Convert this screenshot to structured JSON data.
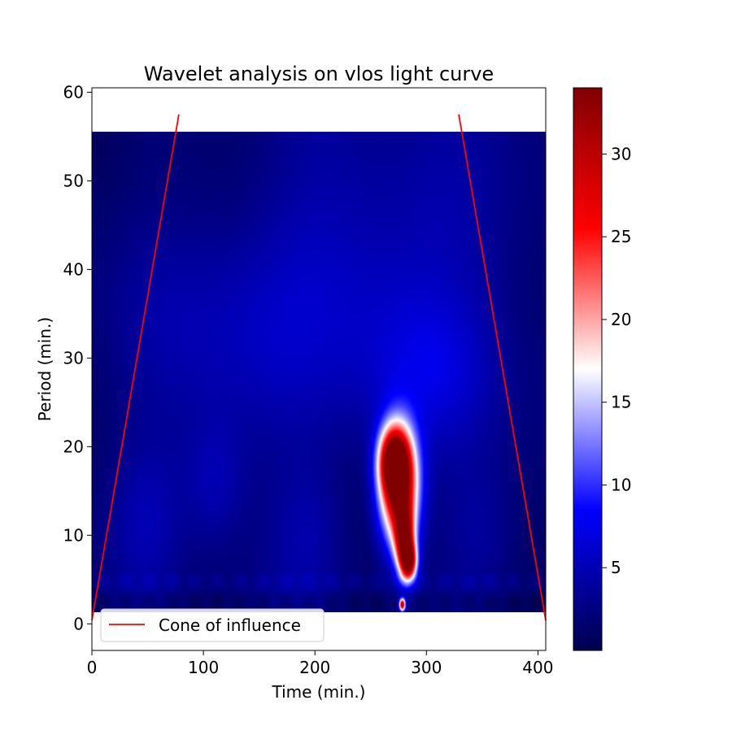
{
  "chart_data": {
    "type": "heatmap",
    "title": "Wavelet analysis on vlos light curve",
    "xlabel": "Time (min.)",
    "ylabel": "Period (min.)",
    "xlim": [
      0,
      407
    ],
    "ylim": [
      -3,
      60.5
    ],
    "x_ticks": [
      "0",
      "100",
      "200",
      "300",
      "400"
    ],
    "y_ticks": [
      "0",
      "10",
      "20",
      "30",
      "40",
      "50",
      "60"
    ],
    "x_tick_values": [
      0,
      100,
      200,
      300,
      400
    ],
    "y_tick_values": [
      0,
      10,
      20,
      30,
      40,
      50,
      60
    ],
    "heatmap_extent": {
      "x": [
        0,
        407
      ],
      "y": [
        1.3,
        55.5
      ]
    },
    "colormap": "seismic",
    "colorbar": {
      "range": [
        0,
        34
      ],
      "ticks": [
        "5",
        "10",
        "15",
        "20",
        "25",
        "30"
      ],
      "tick_values": [
        5,
        10,
        15,
        20,
        25,
        30
      ]
    },
    "grid": false,
    "legend": {
      "placement": "lower-left",
      "entries": [
        {
          "name": "Cone of influence",
          "color": "#ff0000"
        }
      ]
    },
    "series": [
      {
        "name": "Cone of influence",
        "color": "#ff0000",
        "segments": [
          {
            "x": [
              0,
              78
            ],
            "y": [
              0.4,
              57.5
            ]
          },
          {
            "x": [
              329,
              407
            ],
            "y": [
              57.5,
              0.4
            ]
          }
        ]
      }
    ],
    "power_features": [
      {
        "x": 275,
        "y": 15.5,
        "sx": 12,
        "sy": 4.5,
        "value": 34
      },
      {
        "x": 270,
        "y": 18.5,
        "sx": 9,
        "sy": 2.5,
        "value": 22
      },
      {
        "x": 280,
        "y": 9.5,
        "sx": 6,
        "sy": 2.5,
        "value": 24
      },
      {
        "x": 284,
        "y": 7,
        "sx": 5,
        "sy": 1.5,
        "value": 26
      },
      {
        "x": 278,
        "y": 2.2,
        "sx": 2,
        "sy": 0.5,
        "value": 30
      },
      {
        "x": 255,
        "y": 40,
        "sx": 90,
        "sy": 12,
        "value": 4
      },
      {
        "x": 300,
        "y": 28,
        "sx": 40,
        "sy": 6,
        "value": 3
      },
      {
        "x": 110,
        "y": 30,
        "sx": 60,
        "sy": 10,
        "value": 2.5
      },
      {
        "x": 110,
        "y": 16,
        "sx": 20,
        "sy": 5,
        "value": 3
      },
      {
        "x": 195,
        "y": 10,
        "sx": 25,
        "sy": 6,
        "value": 2.5
      },
      {
        "x": 50,
        "y": 12,
        "sx": 22,
        "sy": 6,
        "value": 2.5
      },
      {
        "x": 350,
        "y": 10,
        "sx": 25,
        "sy": 6,
        "value": 2.5
      }
    ]
  }
}
